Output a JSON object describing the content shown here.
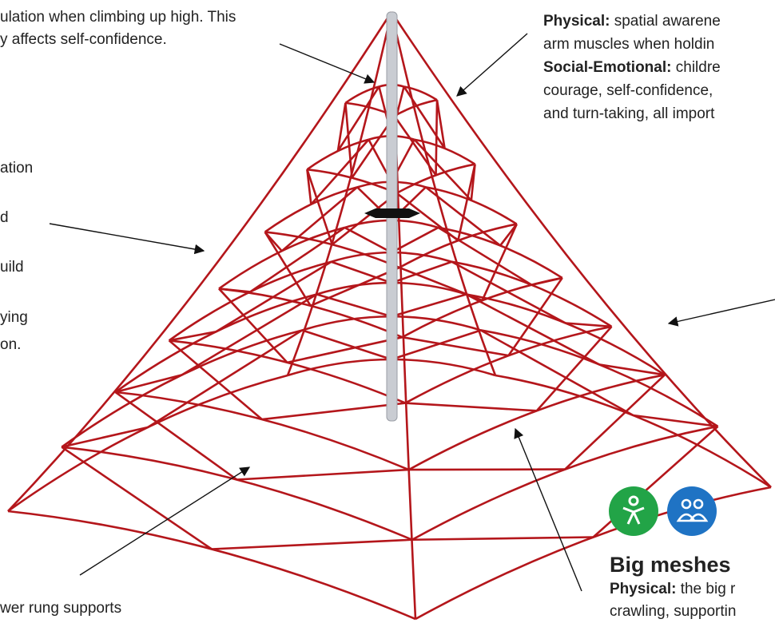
{
  "annotations": {
    "top_left": {
      "lines": [
        "ulation when climbing up high. This",
        "y affects self-confidence."
      ]
    },
    "left": {
      "lines": [
        "ation",
        "d",
        "uild",
        "ying",
        "on."
      ]
    },
    "top_right": {
      "lines": [
        {
          "bold": "Physical:",
          "text": " spatial awarene"
        },
        {
          "text": "arm muscles when holdin"
        },
        {
          "bold": "Social-Emotional:",
          "text": " childre"
        },
        {
          "text": "courage, self-confidence,"
        },
        {
          "text": "and turn-taking, all import"
        }
      ]
    },
    "big_meshes": {
      "title": "Big meshes",
      "lines": [
        {
          "bold": "Physical:",
          "text": " the big r"
        },
        {
          "text": "crawling, supportin"
        }
      ]
    },
    "bottom_left": {
      "lines": [
        "wer rung supports"
      ]
    }
  }
}
